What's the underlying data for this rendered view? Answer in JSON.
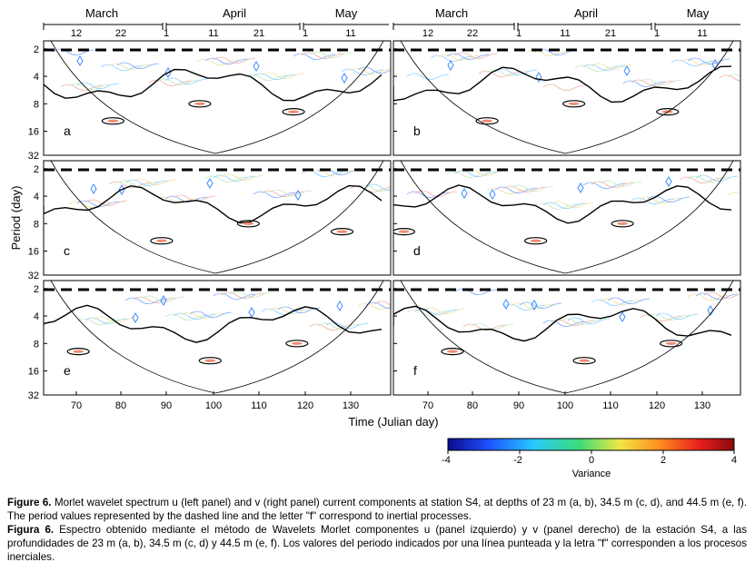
{
  "figure": {
    "months_left": [
      "March",
      "April",
      "May"
    ],
    "months_right": [
      "March",
      "April",
      "May"
    ],
    "day_ticks": [
      "12",
      "22",
      "1",
      "11",
      "21",
      "1",
      "11"
    ],
    "ylabel": "Period (day)",
    "yticks": [
      "2",
      "4",
      "8",
      "16",
      "32"
    ],
    "xlabel": "Time (Julian day)",
    "xticks": [
      "70",
      "80",
      "90",
      "100",
      "110",
      "120",
      "130"
    ],
    "panel_labels": [
      "a",
      "b",
      "c",
      "d",
      "e",
      "f"
    ],
    "colorbar": {
      "label": "Variance",
      "ticks": [
        "-4",
        "-2",
        "0",
        "2",
        "4"
      ],
      "colors": [
        "#0a0a8c",
        "#1e50ff",
        "#28c8ff",
        "#3cdc78",
        "#f0e646",
        "#ff8c1e",
        "#e61e1e",
        "#8c0a0a"
      ]
    }
  },
  "caption": {
    "en_label": "Figure 6.",
    "en_text": " Morlet wavelet spectrum u (left panel) and v (right panel) current components at station S4, at depths of 23 m (a, b), 34.5 m (c, d), and 44.5 m (e, f). The period values represented by the dashed line and the letter \"f\" correspond to inertial processes.",
    "es_label": "Figura 6.",
    "es_text": " Espectro obtenido mediante el método de Wavelets Morlet componentes u (panel izquierdo) y v (panel derecho) de la estación S4, a las profundidades de 23 m (a, b), 34.5 m (c, d) y 44.5 m (e, f). Los valores del periodo indicados por una línea punteada y la letra \"f\" corresponden a los procesos inerciales."
  }
}
